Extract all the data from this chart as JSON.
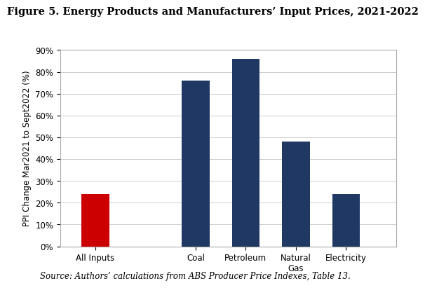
{
  "title": "Figure 5. Energy Products and Manufacturers’ Input Prices, 2021-2022",
  "categories": [
    "All Inputs",
    "Coal",
    "Petroleum",
    "Natural\nGas",
    "Electricity"
  ],
  "values": [
    24,
    76,
    86,
    48,
    24
  ],
  "bar_colors": [
    "#cc0000",
    "#1f3864",
    "#1f3864",
    "#1f3864",
    "#1f3864"
  ],
  "ylabel": "PPI Change Mar2021 to Sept2022 (%)",
  "ylim": [
    0,
    90
  ],
  "yticks": [
    0,
    10,
    20,
    30,
    40,
    50,
    60,
    70,
    80,
    90
  ],
  "ytick_labels": [
    "0%",
    "10%",
    "20%",
    "30%",
    "40%",
    "50%",
    "60%",
    "70%",
    "80%",
    "90%"
  ],
  "source_text": "Source: Authors’ calculations from ABS Producer Price Indexes, Table 13.",
  "background_color": "#ffffff",
  "plot_bg_color": "#ffffff",
  "grid_color": "#cccccc",
  "title_fontsize": 10.5,
  "label_fontsize": 8.5,
  "tick_fontsize": 8.5,
  "source_fontsize": 8.5,
  "x_positions": [
    1,
    3,
    4,
    5,
    6
  ],
  "xlim": [
    0.3,
    7.0
  ]
}
